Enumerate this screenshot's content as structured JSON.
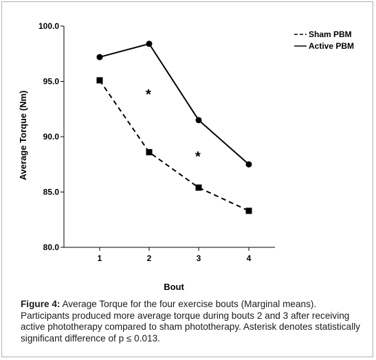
{
  "chart_data": {
    "type": "line",
    "xlabel": "Bout",
    "ylabel": "Average Torque (Nm)",
    "x": [
      1,
      2,
      3,
      4
    ],
    "ylim": [
      80.0,
      100.0
    ],
    "yticks": [
      "80.0",
      "85.0",
      "90.0",
      "95.0",
      "100.0"
    ],
    "xticks": [
      "1",
      "2",
      "3",
      "4"
    ],
    "grid": false,
    "legend_position": "top-right",
    "series": [
      {
        "name": "Sham PBM",
        "values": [
          95.1,
          88.6,
          85.4,
          83.3
        ],
        "line_style": "dashed",
        "marker": "square",
        "color": "#000000"
      },
      {
        "name": "Active PBM",
        "values": [
          97.2,
          98.4,
          91.5,
          87.5
        ],
        "line_style": "solid",
        "marker": "circle",
        "color": "#000000"
      }
    ],
    "annotations": [
      {
        "text": "*",
        "x": 2,
        "y": 93.9
      },
      {
        "text": "*",
        "x": 3,
        "y": 88.3
      }
    ]
  },
  "caption": {
    "label": "Figure 4:",
    "text": "Average Torque for the four exercise bouts (Marginal means). Participants produced more average torque during bouts 2 and 3 after receiving active phototherapy compared to sham phototherapy. Asterisk denotes statistically significant difference of p ≤ 0.013."
  }
}
